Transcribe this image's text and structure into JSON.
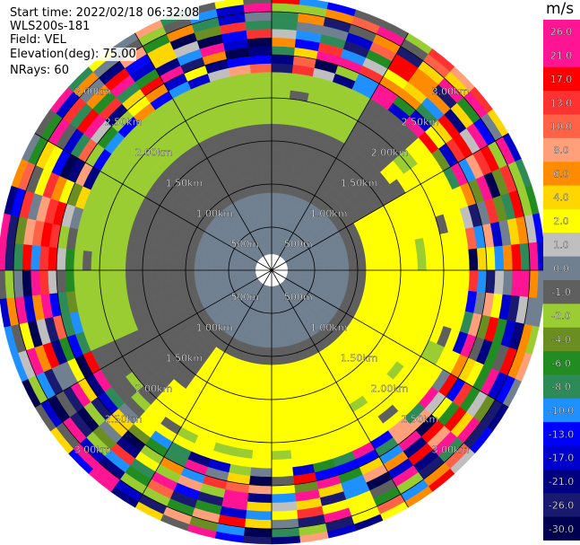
{
  "header": {
    "start_time": "Start time: 2022/02/18 06:32:08",
    "instrument": "WLS200s-181",
    "field": "Field: VEL",
    "elevation": "Elevation(deg): 75.00",
    "nrays": "NRays: 60"
  },
  "colorbar": {
    "unit": "m/s",
    "labels": [
      "26.0",
      "21.0",
      "17.0",
      "13.0",
      "10.0",
      "8.0",
      "6.0",
      "4.0",
      "2.0",
      "1.0",
      "0.0",
      "-1.0",
      "-2.0",
      "-4.0",
      "-6.0",
      "-8.0",
      "-10.0",
      "-13.0",
      "-17.0",
      "-21.0",
      "-26.0",
      "-30.0"
    ],
    "colors": [
      "#ff1493",
      "#ff1493",
      "#ff0000",
      "#ff3232",
      "#ff6347",
      "#ffa07a",
      "#ff8c00",
      "#ffd700",
      "#ffff00",
      "#bfbfbf",
      "#708090",
      "#5f5f5f",
      "#9acd32",
      "#6b8e23",
      "#228b22",
      "#2e8b57",
      "#1e90ff",
      "#0000ff",
      "#0000cd",
      "#000080",
      "#191970",
      "#000050"
    ]
  },
  "chart_data": {
    "type": "heatmap",
    "projection": "polar (PPI)",
    "field": "VEL",
    "units": "m/s",
    "range_ring_labels": [
      "500m",
      "1.00km",
      "1.50km",
      "2.00km",
      "2.50km",
      "3.00km"
    ],
    "range_rings_km": [
      0.5,
      1.0,
      1.5,
      2.0,
      2.5,
      3.0
    ],
    "max_range_km": 3.0,
    "n_rays": 60,
    "elevation_deg": 75.0,
    "color_levels": [
      26.0,
      21.0,
      17.0,
      13.0,
      10.0,
      8.0,
      6.0,
      4.0,
      2.0,
      1.0,
      0.0,
      -1.0,
      -2.0,
      -4.0,
      -6.0,
      -8.0,
      -10.0,
      -13.0,
      -17.0,
      -21.0,
      -26.0,
      -30.0
    ],
    "regions": [
      {
        "desc": "inner core",
        "range_km": [
          0.1,
          0.9
        ],
        "value": 0.0
      },
      {
        "desc": "inner ring",
        "range_km": [
          0.9,
          1.8
        ],
        "value": -1.0
      },
      {
        "desc": "north-west sector",
        "range_km": [
          1.2,
          2.3
        ],
        "value": -2.0
      },
      {
        "desc": "south-east sector",
        "range_km": [
          0.9,
          2.3
        ],
        "value": 2.0
      },
      {
        "desc": "outer ring",
        "range_km": [
          2.3,
          3.3
        ],
        "value": "mixed"
      }
    ]
  }
}
